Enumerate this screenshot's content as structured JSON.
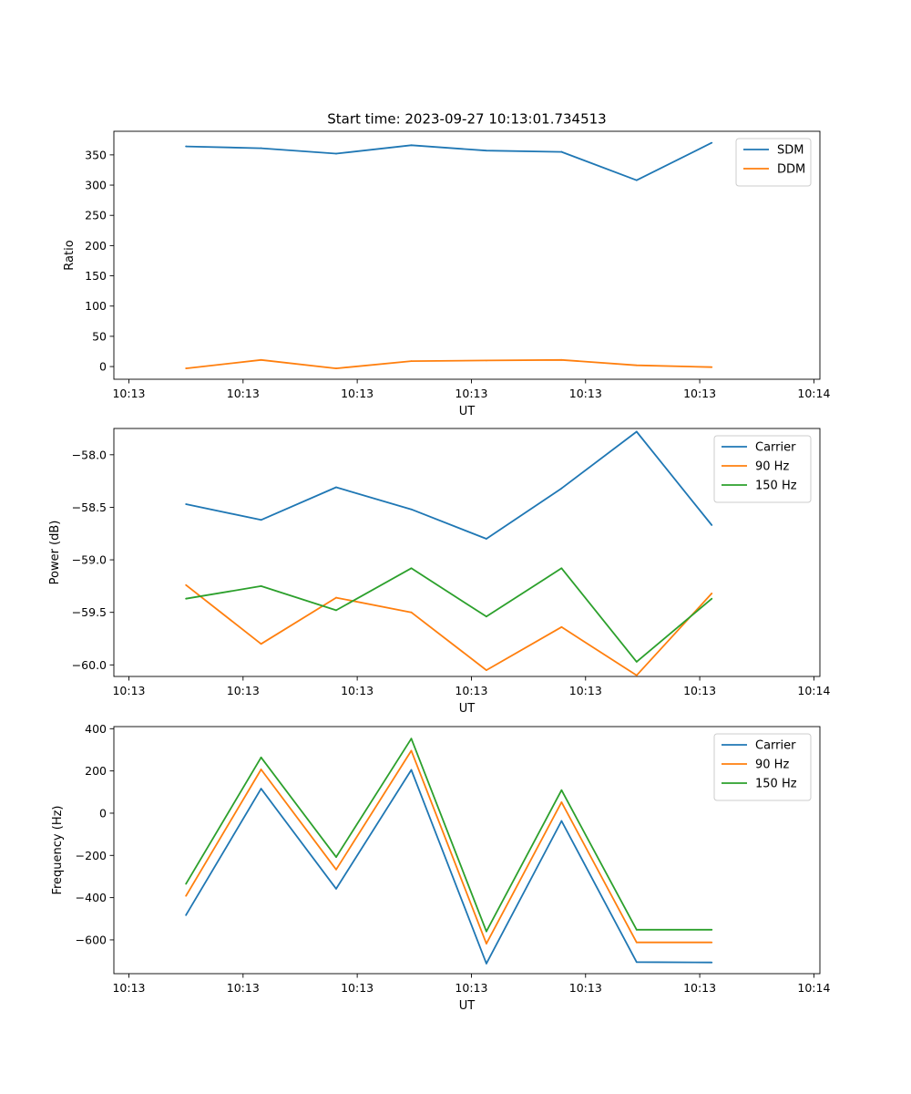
{
  "figure": {
    "title": "Start time: 2023-09-27 10:13:01.734513"
  },
  "colors": {
    "blue": "#1f77b4",
    "orange": "#ff7f0e",
    "green": "#2ca02c"
  },
  "chart_data": [
    {
      "id": "ratio",
      "type": "line",
      "title": "Start time: 2023-09-27 10:13:01.734513",
      "xlabel": "UT",
      "ylabel": "Ratio",
      "xlim": [
        -0.1,
        4.6
      ],
      "ylim": [
        -21,
        389
      ],
      "x_ticks": [
        0,
        0.76,
        1.52,
        2.28,
        3.04,
        3.8,
        4.56
      ],
      "x_tick_labels": [
        "10:13",
        "10:13",
        "10:13",
        "10:13",
        "10:13",
        "10:13",
        "10:14"
      ],
      "y_ticks": [
        0,
        50,
        100,
        150,
        200,
        250,
        300,
        350
      ],
      "y_tick_labels": [
        "0",
        "50",
        "100",
        "150",
        "200",
        "250",
        "300",
        "350"
      ],
      "x": [
        0.38,
        0.88,
        1.38,
        1.88,
        2.38,
        2.88,
        3.38,
        3.88
      ],
      "series": [
        {
          "name": "SDM",
          "color": "blue",
          "values": [
            364,
            361,
            352,
            366,
            357,
            355,
            308,
            370
          ]
        },
        {
          "name": "DDM",
          "color": "orange",
          "values": [
            -3,
            11,
            -3,
            9,
            10,
            11,
            2,
            -1
          ]
        }
      ],
      "legend": "top-right"
    },
    {
      "id": "power",
      "type": "line",
      "title": "",
      "xlabel": "UT",
      "ylabel": "Power (dB)",
      "xlim": [
        -0.1,
        4.6
      ],
      "ylim": [
        -60.11,
        -57.75
      ],
      "x_ticks": [
        0,
        0.76,
        1.52,
        2.28,
        3.04,
        3.8,
        4.56
      ],
      "x_tick_labels": [
        "10:13",
        "10:13",
        "10:13",
        "10:13",
        "10:13",
        "10:13",
        "10:14"
      ],
      "y_ticks": [
        -58.0,
        -58.5,
        -59.0,
        -59.5,
        -60.0
      ],
      "y_tick_labels": [
        "−58.0",
        "−58.5",
        "−59.0",
        "−59.5",
        "−60.0"
      ],
      "x": [
        0.38,
        0.88,
        1.38,
        1.88,
        2.38,
        2.88,
        3.38,
        3.88
      ],
      "series": [
        {
          "name": "Carrier",
          "color": "blue",
          "values": [
            -58.47,
            -58.62,
            -58.31,
            -58.52,
            -58.8,
            -58.32,
            -57.78,
            -58.67
          ]
        },
        {
          "name": "90 Hz",
          "color": "orange",
          "values": [
            -59.24,
            -59.8,
            -59.36,
            -59.5,
            -60.05,
            -59.64,
            -60.1,
            -59.32
          ]
        },
        {
          "name": "150 Hz",
          "color": "green",
          "values": [
            -59.37,
            -59.25,
            -59.48,
            -59.08,
            -59.54,
            -59.08,
            -59.97,
            -59.37
          ]
        }
      ],
      "legend": "top-right"
    },
    {
      "id": "frequency",
      "type": "line",
      "title": "",
      "xlabel": "UT",
      "ylabel": "Frequency (Hz)",
      "xlim": [
        -0.1,
        4.6
      ],
      "ylim": [
        -760,
        410
      ],
      "x_ticks": [
        0,
        0.76,
        1.52,
        2.28,
        3.04,
        3.8,
        4.56
      ],
      "x_tick_labels": [
        "10:13",
        "10:13",
        "10:13",
        "10:13",
        "10:13",
        "10:13",
        "10:14"
      ],
      "y_ticks": [
        400,
        200,
        0,
        -200,
        -400,
        -600
      ],
      "y_tick_labels": [
        "400",
        "200",
        "0",
        "−200",
        "−400",
        "−600"
      ],
      "x": [
        0.38,
        0.88,
        1.38,
        1.88,
        2.38,
        2.88,
        3.38,
        3.88
      ],
      "series": [
        {
          "name": "Carrier",
          "color": "blue",
          "values": [
            -483,
            116,
            -358,
            205,
            -712,
            -37,
            -705,
            -707
          ]
        },
        {
          "name": "90 Hz",
          "color": "orange",
          "values": [
            -392,
            207,
            -267,
            296,
            -618,
            52,
            -612,
            -612
          ]
        },
        {
          "name": "150 Hz",
          "color": "green",
          "values": [
            -335,
            264,
            -208,
            353,
            -560,
            109,
            -552,
            -552
          ]
        }
      ],
      "legend": "top-right"
    }
  ]
}
